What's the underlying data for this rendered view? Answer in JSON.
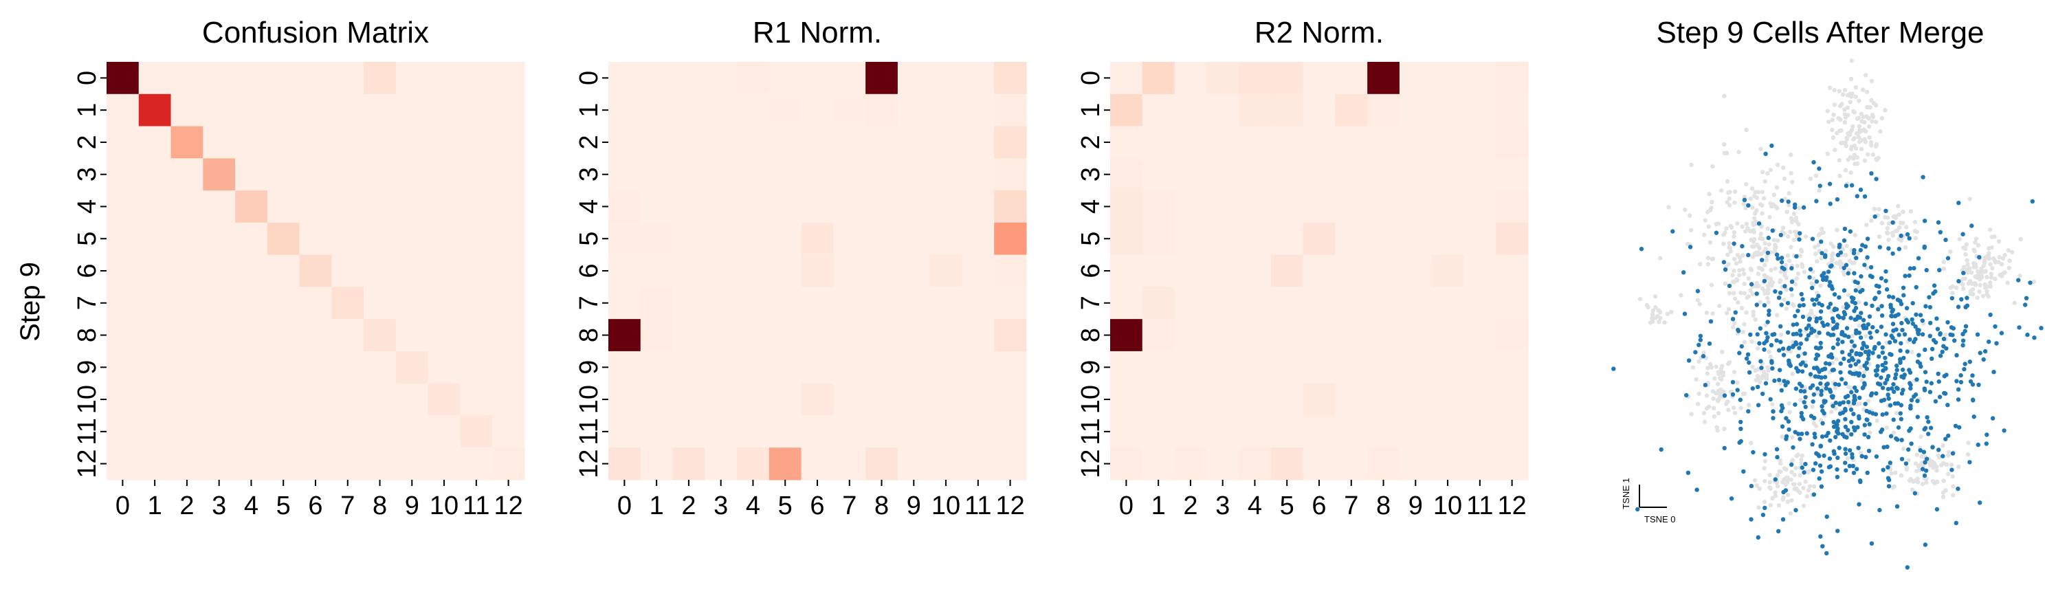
{
  "chart_data": [
    {
      "type": "heatmap",
      "title": "Confusion Matrix",
      "ylabel": "Step 9",
      "xlabel": "",
      "x_tick_labels": [
        "0",
        "1",
        "2",
        "3",
        "4",
        "5",
        "6",
        "7",
        "8",
        "9",
        "10",
        "11",
        "12"
      ],
      "y_tick_labels": [
        "0",
        "1",
        "2",
        "3",
        "4",
        "5",
        "6",
        "7",
        "8",
        "9",
        "10",
        "11",
        "12"
      ],
      "colormap": "Reds",
      "vmax": 1.0,
      "values": [
        [
          1.0,
          0.04,
          0.04,
          0.04,
          0.04,
          0.04,
          0.04,
          0.04,
          0.12,
          0.04,
          0.04,
          0.04,
          0.04
        ],
        [
          0.04,
          0.7,
          0.04,
          0.04,
          0.04,
          0.04,
          0.04,
          0.04,
          0.04,
          0.04,
          0.04,
          0.04,
          0.04
        ],
        [
          0.04,
          0.04,
          0.3,
          0.04,
          0.04,
          0.04,
          0.04,
          0.04,
          0.04,
          0.04,
          0.04,
          0.04,
          0.04
        ],
        [
          0.04,
          0.04,
          0.04,
          0.28,
          0.04,
          0.04,
          0.04,
          0.04,
          0.04,
          0.04,
          0.04,
          0.04,
          0.04
        ],
        [
          0.04,
          0.04,
          0.04,
          0.04,
          0.19,
          0.04,
          0.04,
          0.04,
          0.04,
          0.04,
          0.04,
          0.04,
          0.04
        ],
        [
          0.04,
          0.04,
          0.04,
          0.04,
          0.04,
          0.16,
          0.04,
          0.04,
          0.04,
          0.04,
          0.04,
          0.04,
          0.04
        ],
        [
          0.04,
          0.04,
          0.04,
          0.04,
          0.04,
          0.04,
          0.14,
          0.04,
          0.04,
          0.04,
          0.04,
          0.04,
          0.04
        ],
        [
          0.04,
          0.04,
          0.04,
          0.04,
          0.04,
          0.04,
          0.04,
          0.12,
          0.04,
          0.04,
          0.04,
          0.04,
          0.04
        ],
        [
          0.04,
          0.04,
          0.04,
          0.04,
          0.04,
          0.04,
          0.04,
          0.04,
          0.1,
          0.04,
          0.04,
          0.04,
          0.04
        ],
        [
          0.04,
          0.04,
          0.04,
          0.04,
          0.04,
          0.04,
          0.04,
          0.04,
          0.04,
          0.09,
          0.04,
          0.04,
          0.04
        ],
        [
          0.04,
          0.04,
          0.04,
          0.04,
          0.04,
          0.04,
          0.04,
          0.04,
          0.04,
          0.04,
          0.09,
          0.04,
          0.04
        ],
        [
          0.04,
          0.04,
          0.04,
          0.04,
          0.04,
          0.04,
          0.04,
          0.04,
          0.04,
          0.04,
          0.04,
          0.09,
          0.04
        ],
        [
          0.04,
          0.04,
          0.04,
          0.04,
          0.04,
          0.04,
          0.04,
          0.04,
          0.04,
          0.04,
          0.04,
          0.04,
          0.06
        ]
      ]
    },
    {
      "type": "heatmap",
      "title": "R1 Norm.",
      "xlabel": "",
      "ylabel": "",
      "x_tick_labels": [
        "0",
        "1",
        "2",
        "3",
        "4",
        "5",
        "6",
        "7",
        "8",
        "9",
        "10",
        "11",
        "12"
      ],
      "y_tick_labels": [
        "0",
        "1",
        "2",
        "3",
        "4",
        "5",
        "6",
        "7",
        "8",
        "9",
        "10",
        "11",
        "12"
      ],
      "colormap": "Reds",
      "vmax": 1.0,
      "values": [
        [
          0.04,
          0.04,
          0.04,
          0.04,
          0.06,
          0.04,
          0.04,
          0.04,
          1.0,
          0.04,
          0.04,
          0.04,
          0.12
        ],
        [
          0.04,
          0.04,
          0.04,
          0.04,
          0.04,
          0.05,
          0.04,
          0.05,
          0.06,
          0.04,
          0.04,
          0.04,
          0.05
        ],
        [
          0.04,
          0.04,
          0.04,
          0.04,
          0.04,
          0.04,
          0.04,
          0.04,
          0.04,
          0.04,
          0.04,
          0.04,
          0.12
        ],
        [
          0.04,
          0.04,
          0.04,
          0.04,
          0.04,
          0.04,
          0.04,
          0.04,
          0.04,
          0.04,
          0.04,
          0.04,
          0.05
        ],
        [
          0.06,
          0.04,
          0.04,
          0.04,
          0.04,
          0.04,
          0.04,
          0.04,
          0.04,
          0.04,
          0.04,
          0.04,
          0.14
        ],
        [
          0.05,
          0.05,
          0.04,
          0.04,
          0.04,
          0.04,
          0.09,
          0.04,
          0.04,
          0.04,
          0.04,
          0.04,
          0.35
        ],
        [
          0.04,
          0.04,
          0.04,
          0.04,
          0.04,
          0.04,
          0.08,
          0.04,
          0.04,
          0.04,
          0.07,
          0.04,
          0.05
        ],
        [
          0.04,
          0.06,
          0.04,
          0.04,
          0.04,
          0.04,
          0.04,
          0.04,
          0.04,
          0.04,
          0.04,
          0.04,
          0.04
        ],
        [
          1.0,
          0.06,
          0.04,
          0.04,
          0.04,
          0.04,
          0.04,
          0.04,
          0.04,
          0.04,
          0.04,
          0.04,
          0.11
        ],
        [
          0.04,
          0.04,
          0.04,
          0.04,
          0.04,
          0.04,
          0.04,
          0.04,
          0.04,
          0.04,
          0.04,
          0.04,
          0.04
        ],
        [
          0.04,
          0.04,
          0.04,
          0.04,
          0.04,
          0.04,
          0.08,
          0.04,
          0.04,
          0.04,
          0.04,
          0.04,
          0.04
        ],
        [
          0.04,
          0.04,
          0.04,
          0.04,
          0.04,
          0.04,
          0.04,
          0.04,
          0.04,
          0.04,
          0.04,
          0.04,
          0.04
        ],
        [
          0.1,
          0.04,
          0.1,
          0.04,
          0.09,
          0.32,
          0.04,
          0.04,
          0.1,
          0.04,
          0.04,
          0.04,
          0.04
        ]
      ]
    },
    {
      "type": "heatmap",
      "title": "R2 Norm.",
      "xlabel": "",
      "ylabel": "",
      "x_tick_labels": [
        "0",
        "1",
        "2",
        "3",
        "4",
        "5",
        "6",
        "7",
        "8",
        "9",
        "10",
        "11",
        "12"
      ],
      "y_tick_labels": [
        "0",
        "1",
        "2",
        "3",
        "4",
        "5",
        "6",
        "7",
        "8",
        "9",
        "10",
        "11",
        "12"
      ],
      "colormap": "Reds",
      "vmax": 1.0,
      "values": [
        [
          0.04,
          0.15,
          0.04,
          0.07,
          0.09,
          0.09,
          0.04,
          0.04,
          1.0,
          0.04,
          0.04,
          0.04,
          0.06
        ],
        [
          0.15,
          0.04,
          0.04,
          0.04,
          0.07,
          0.07,
          0.04,
          0.11,
          0.06,
          0.04,
          0.04,
          0.04,
          0.05
        ],
        [
          0.04,
          0.04,
          0.04,
          0.04,
          0.04,
          0.04,
          0.04,
          0.04,
          0.04,
          0.04,
          0.04,
          0.04,
          0.06
        ],
        [
          0.06,
          0.04,
          0.04,
          0.04,
          0.04,
          0.04,
          0.04,
          0.04,
          0.04,
          0.04,
          0.04,
          0.04,
          0.04
        ],
        [
          0.07,
          0.06,
          0.04,
          0.04,
          0.04,
          0.04,
          0.04,
          0.04,
          0.04,
          0.04,
          0.04,
          0.04,
          0.06
        ],
        [
          0.07,
          0.06,
          0.04,
          0.04,
          0.04,
          0.04,
          0.1,
          0.04,
          0.04,
          0.04,
          0.04,
          0.04,
          0.1
        ],
        [
          0.04,
          0.04,
          0.04,
          0.04,
          0.04,
          0.1,
          0.04,
          0.04,
          0.04,
          0.04,
          0.07,
          0.04,
          0.04
        ],
        [
          0.04,
          0.07,
          0.04,
          0.04,
          0.04,
          0.04,
          0.04,
          0.04,
          0.04,
          0.04,
          0.04,
          0.04,
          0.04
        ],
        [
          1.0,
          0.06,
          0.04,
          0.04,
          0.04,
          0.04,
          0.04,
          0.04,
          0.04,
          0.04,
          0.04,
          0.04,
          0.06
        ],
        [
          0.04,
          0.04,
          0.04,
          0.04,
          0.04,
          0.04,
          0.04,
          0.04,
          0.04,
          0.04,
          0.04,
          0.04,
          0.04
        ],
        [
          0.04,
          0.04,
          0.04,
          0.04,
          0.04,
          0.04,
          0.07,
          0.04,
          0.04,
          0.04,
          0.04,
          0.04,
          0.04
        ],
        [
          0.04,
          0.04,
          0.04,
          0.04,
          0.04,
          0.04,
          0.04,
          0.04,
          0.04,
          0.04,
          0.04,
          0.04,
          0.04
        ],
        [
          0.06,
          0.04,
          0.06,
          0.04,
          0.06,
          0.1,
          0.04,
          0.04,
          0.06,
          0.04,
          0.04,
          0.04,
          0.04
        ]
      ]
    },
    {
      "type": "scatter",
      "title": "Step 9 Cells After Merge",
      "xlabel": "TSNE 0",
      "ylabel": "TSNE 1",
      "series": [
        {
          "role": "other cells",
          "color": "#e2e2e2"
        },
        {
          "role": "step 9 cells",
          "color": "#1f77b4"
        }
      ]
    }
  ]
}
